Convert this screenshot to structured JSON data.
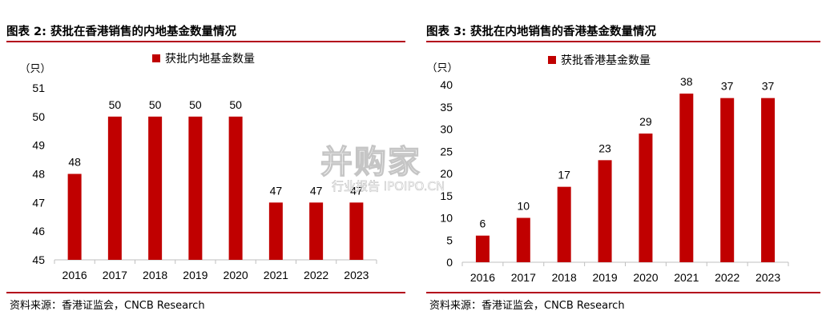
{
  "left": {
    "figure_title": "图表 2: 获批在香港销售的内地基金数量情况",
    "source": "资料来源：香港证监会，CNCB Research"
  },
  "right": {
    "figure_title": "图表 3: 获批在内地销售的香港基金数量情况",
    "source": "资料来源：香港证监会，CNCB Research"
  },
  "watermark": {
    "main": "并购家",
    "sub": "行业报告 IPOIPO.CN"
  },
  "colors": {
    "bar": "#c00000",
    "rule": "#b3001b",
    "axis": "#bfbfbf"
  },
  "chart_data": [
    {
      "type": "bar",
      "title": "",
      "ylabel": "（只）",
      "xlabel": "",
      "legend": "获批内地基金数量",
      "legend_position": "top",
      "grid": false,
      "categories": [
        "2016",
        "2017",
        "2018",
        "2019",
        "2020",
        "2021",
        "2022",
        "2023"
      ],
      "values": [
        48,
        50,
        50,
        50,
        50,
        47,
        47,
        47
      ],
      "ylim": [
        45,
        51
      ],
      "yticks": [
        45,
        46,
        47,
        48,
        49,
        50,
        51
      ]
    },
    {
      "type": "bar",
      "title": "",
      "ylabel": "（只）",
      "xlabel": "",
      "legend": "获批香港基金数量",
      "legend_position": "top",
      "grid": false,
      "categories": [
        "2016",
        "2017",
        "2018",
        "2019",
        "2020",
        "2021",
        "2022",
        "2023"
      ],
      "values": [
        6,
        10,
        17,
        23,
        29,
        38,
        37,
        37
      ],
      "ylim": [
        0,
        40
      ],
      "yticks": [
        0,
        5,
        10,
        15,
        20,
        25,
        30,
        35,
        40
      ]
    }
  ]
}
